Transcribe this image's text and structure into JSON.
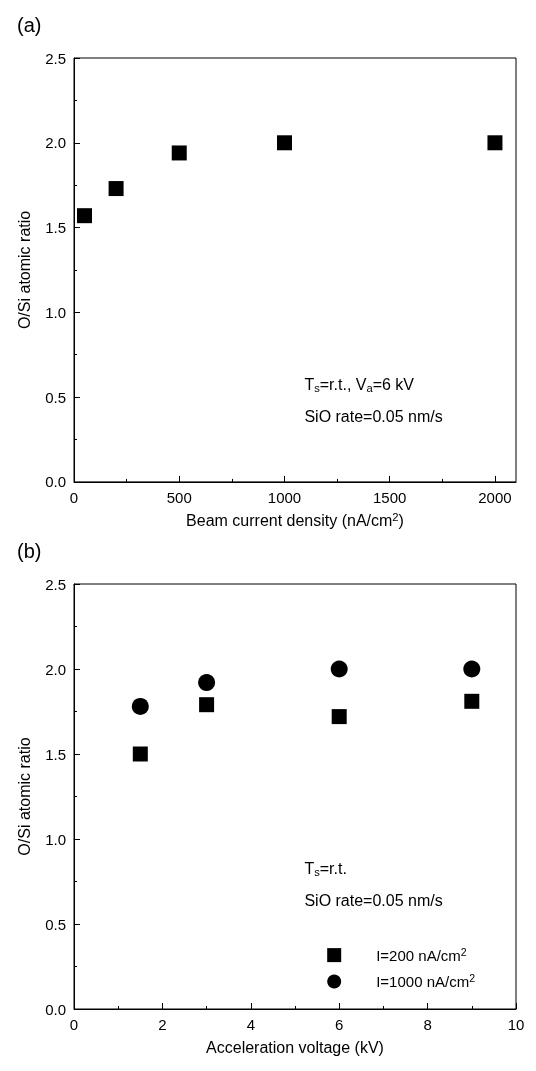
{
  "chart_data": [
    {
      "type": "scatter",
      "title": "(a)",
      "xlabel": "Beam current density (nA/cm$^{2}$)",
      "ylabel": "O/Si atomic ratio",
      "x": [
        50,
        200,
        500,
        1000,
        2000
      ],
      "series": [
        {
          "color": "#000000",
          "marker": "square",
          "values": [
            1.57,
            1.73,
            1.94,
            2.0,
            2.0
          ]
        }
      ],
      "xlim": [
        0,
        2100
      ],
      "xticks": [
        0,
        500,
        1000,
        1500,
        2000
      ],
      "ylim": [
        0,
        2.5
      ],
      "yticks": [
        {
          "value": 0,
          "label": "0.0"
        },
        0.5,
        {
          "value": 1,
          "label": "1.0"
        },
        1.5,
        {
          "value": 2,
          "label": "2.0"
        },
        2.5
      ],
      "annotations": [
        "T$_{s}$=r.t., V$_{a}$=6 kV",
        "SiO rate=0.05 nm/s"
      ],
      "grid": false,
      "legend": false
    },
    {
      "type": "scatter",
      "title": "(b)",
      "xlabel": "Acceleration voltage (kV)",
      "ylabel": "O/Si atomic ratio",
      "x": [
        1.5,
        3,
        6,
        9
      ],
      "series": [
        {
          "name": "I=200 nA/cm$^{2}$",
          "color": "#000000",
          "marker": "square",
          "values": [
            1.5,
            1.79,
            1.72,
            1.81
          ]
        },
        {
          "name": "I=1000 nA/cm$^{2}$",
          "color": "#000000",
          "marker": "circle",
          "values": [
            1.78,
            1.92,
            2.0,
            2.0
          ]
        }
      ],
      "xlim": [
        0,
        10
      ],
      "xticks": [
        0,
        2,
        4,
        6,
        8,
        10
      ],
      "ylim": [
        0,
        2.5
      ],
      "yticks": [
        {
          "value": 0,
          "label": "0.0"
        },
        0.5,
        {
          "value": 1,
          "label": "1.0"
        },
        1.5,
        {
          "value": 2,
          "label": "2.0"
        },
        2.5
      ],
      "annotations": [
        "T$_{s}$=r.t.",
        "SiO rate=0.05 nm/s"
      ],
      "grid": false,
      "legend": "bottom right"
    }
  ]
}
